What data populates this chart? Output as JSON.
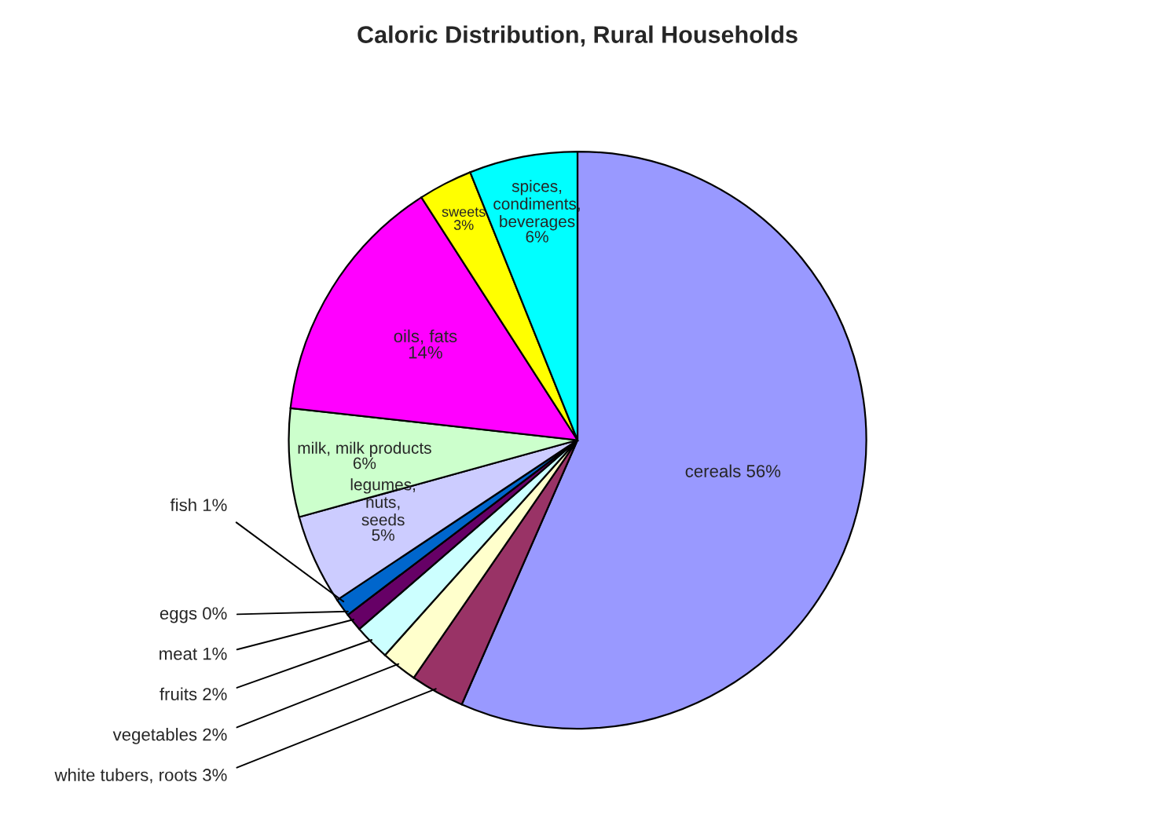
{
  "chart_data": {
    "type": "pie",
    "title": "Caloric Distribution, Rural Households",
    "categories": [
      "cereals",
      "white tubers, roots",
      "vegetables",
      "fruits",
      "meat",
      "eggs",
      "fish",
      "legumes, nuts, seeds",
      "milk, milk products",
      "oils, fats",
      "sweets",
      "spices, condiments, beverages"
    ],
    "values": [
      56,
      3,
      2,
      2,
      1,
      0,
      1,
      5,
      6,
      14,
      3,
      6
    ],
    "colors": [
      "#9999ff",
      "#993366",
      "#ffffcc",
      "#ccffff",
      "#660066",
      "#ff8080",
      "#0066cc",
      "#ccccff",
      "#ccffcc",
      "#ff00ff",
      "#ffff00",
      "#00ffff"
    ],
    "value_labels": [
      "56%",
      "3%",
      "2%",
      "2%",
      "1%",
      "0%",
      "1%",
      "5%",
      "6%",
      "14%",
      "3%",
      "6%"
    ],
    "legend": false
  }
}
